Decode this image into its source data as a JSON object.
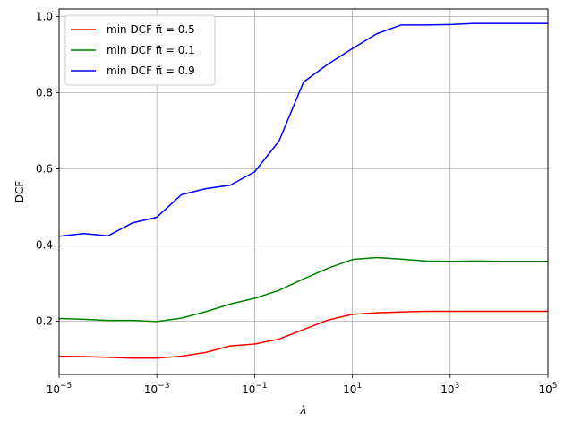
{
  "chart_data": {
    "type": "line",
    "xlabel": "λ",
    "ylabel": "DCF",
    "xscale": "log",
    "xlim": [
      1e-05,
      100000.0
    ],
    "ylim": [
      0.06,
      1.02
    ],
    "grid": true,
    "legend_position": "top-left",
    "x_ticks": [
      {
        "value": 1e-05,
        "base": "10",
        "exp": "−5"
      },
      {
        "value": 0.001,
        "base": "10",
        "exp": "−3"
      },
      {
        "value": 0.1,
        "base": "10",
        "exp": "−1"
      },
      {
        "value": 10.0,
        "base": "10",
        "exp": "1"
      },
      {
        "value": 1000.0,
        "base": "10",
        "exp": "3"
      },
      {
        "value": 100000.0,
        "base": "10",
        "exp": "5"
      }
    ],
    "y_ticks": [
      {
        "value": 0.2,
        "label": "0.2"
      },
      {
        "value": 0.4,
        "label": "0.4"
      },
      {
        "value": 0.6,
        "label": "0.6"
      },
      {
        "value": 0.8,
        "label": "0.8"
      },
      {
        "value": 1.0,
        "label": "1.0"
      }
    ],
    "x": [
      1e-05,
      3.16e-05,
      0.0001,
      0.000316,
      0.001,
      0.00316,
      0.01,
      0.0316,
      0.1,
      0.316,
      1,
      3.16,
      10,
      31.6,
      100,
      316,
      1000,
      3162,
      10000,
      31623,
      100000
    ],
    "series": [
      {
        "name": "min DCF π̃ = 0.5",
        "color": "#ff0000",
        "values": [
          0.108,
          0.107,
          0.105,
          0.103,
          0.103,
          0.108,
          0.118,
          0.135,
          0.14,
          0.153,
          0.178,
          0.203,
          0.218,
          0.222,
          0.224,
          0.226,
          0.226,
          0.226,
          0.226,
          0.226,
          0.226
        ]
      },
      {
        "name": "min DCF π̃ = 0.1",
        "color": "#008000",
        "values": [
          0.207,
          0.205,
          0.202,
          0.202,
          0.199,
          0.208,
          0.225,
          0.245,
          0.26,
          0.281,
          0.311,
          0.339,
          0.362,
          0.367,
          0.363,
          0.358,
          0.357,
          0.358,
          0.357,
          0.357,
          0.357
        ]
      },
      {
        "name": "min DCF π̃ = 0.9",
        "color": "#0000ff",
        "values": [
          0.423,
          0.43,
          0.424,
          0.458,
          0.473,
          0.532,
          0.548,
          0.557,
          0.592,
          0.673,
          0.828,
          0.875,
          0.916,
          0.955,
          0.978,
          0.978,
          0.979,
          0.982,
          0.982,
          0.982,
          0.982
        ]
      }
    ]
  }
}
